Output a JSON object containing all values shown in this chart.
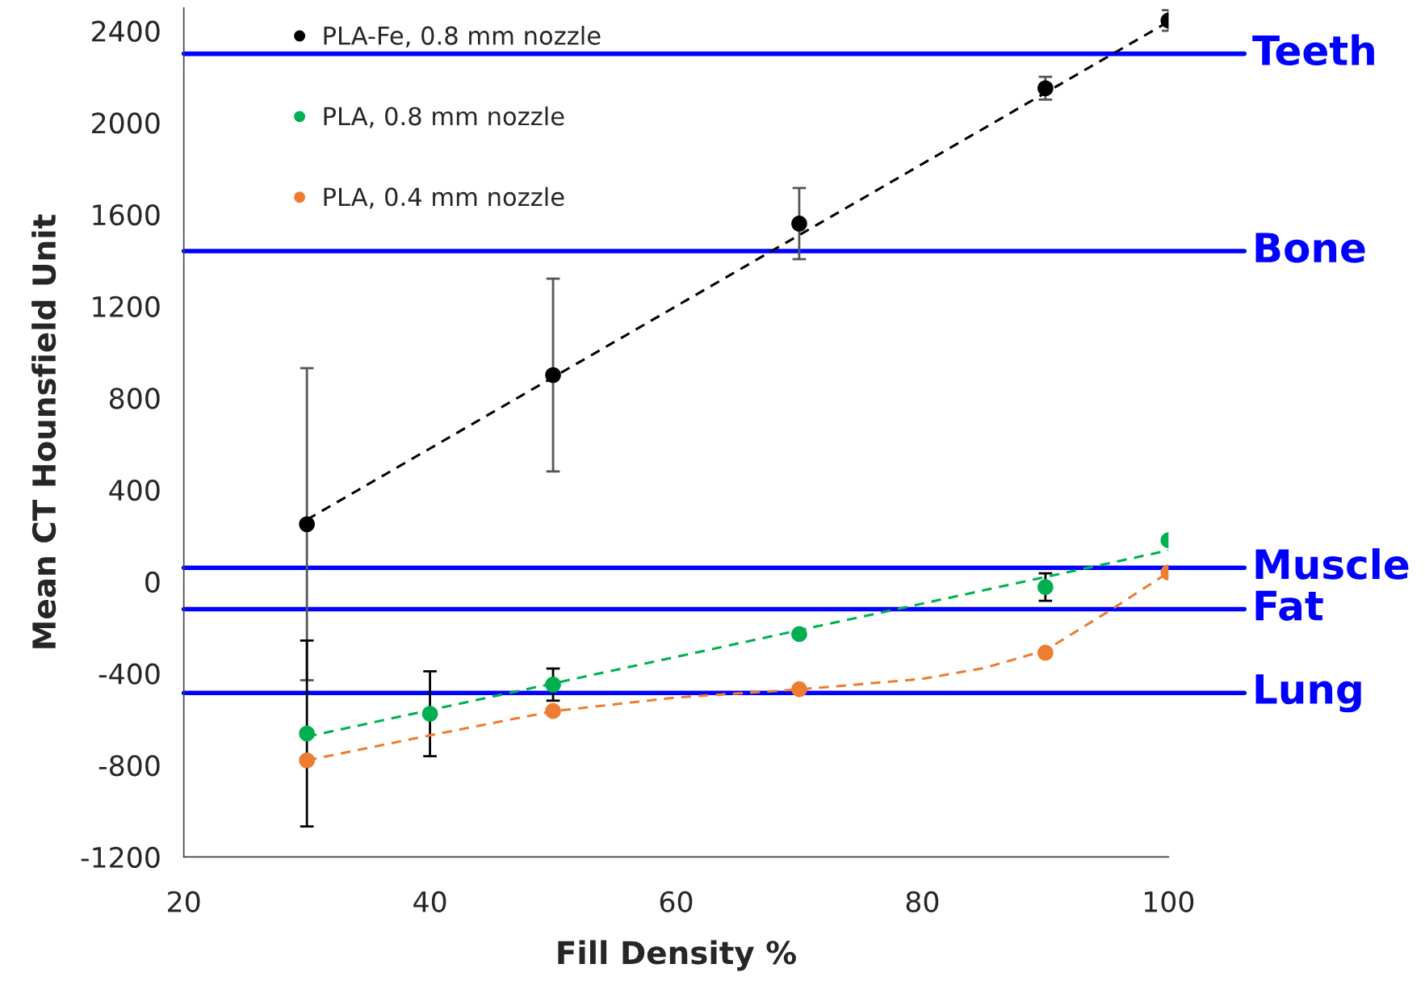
{
  "chart_data": {
    "type": "scatter",
    "xlabel": "Fill Density %",
    "ylabel": "Mean CT Hounsfield Unit",
    "xlim": [
      20,
      100
    ],
    "xticks": [
      20,
      40,
      60,
      80,
      100
    ],
    "ylim": [
      -1200,
      2500
    ],
    "yticks": [
      -1200,
      -800,
      -400,
      0,
      400,
      800,
      1200,
      1600,
      2000,
      2400
    ],
    "grid": false,
    "legend": "top left",
    "marker": "circle",
    "series": [
      {
        "name": "PLA-Fe, 0.8 mm nozzle",
        "color": "#000000",
        "x": [
          30,
          50,
          70,
          90,
          100
        ],
        "values": [
          250,
          900,
          1560,
          2150,
          2445
        ],
        "errors": [
          680,
          420,
          155,
          50,
          45
        ]
      },
      {
        "name": "PLA, 0.8 mm nozzle",
        "color": "#00b050",
        "x": [
          30,
          40,
          50,
          70,
          90,
          100
        ],
        "values": [
          -662,
          -576,
          -449,
          -229,
          -24,
          180
        ],
        "errors": [
          405,
          185,
          70,
          null,
          60,
          null
        ]
      },
      {
        "name": "PLA, 0.4 mm nozzle",
        "color": "#ed7d31",
        "x": [
          30,
          50,
          70,
          90,
          100
        ],
        "values": [
          -779,
          -564,
          -469,
          -310,
          40
        ],
        "errors": [
          null,
          null,
          null,
          null,
          null
        ]
      },
      {
        "type": "line",
        "line_style": "dashed",
        "marker": "none",
        "color": "#000000",
        "x": [
          30,
          100
        ],
        "values": [
          270,
          2440
        ]
      },
      {
        "type": "line",
        "line_style": "dashed",
        "marker": "none",
        "color": "#00b050",
        "x": [
          30,
          100
        ],
        "values": [
          -676,
          136
        ]
      },
      {
        "type": "line",
        "line_style": "dashed",
        "marker": "none",
        "color": "#ed7d31",
        "x": [
          30,
          40,
          50,
          60,
          70,
          80,
          85,
          90,
          95,
          100
        ],
        "values": [
          -779,
          -670,
          -565,
          -505,
          -470,
          -424,
          -377,
          -300,
          -134,
          40
        ]
      }
    ],
    "ref_lines": [
      {
        "axis": "y",
        "value": 2300,
        "label": "Teeth",
        "color": "#0000ff"
      },
      {
        "axis": "y",
        "value": 1440,
        "label": "Bone",
        "color": "#0000ff"
      },
      {
        "axis": "y",
        "value": 60,
        "label": "Muscle",
        "color": "#0000ff"
      },
      {
        "axis": "y",
        "value": -120,
        "label": "Fat",
        "color": "#0000ff"
      },
      {
        "axis": "y",
        "value": -485,
        "label": "Lung",
        "color": "#0000ff"
      }
    ]
  }
}
